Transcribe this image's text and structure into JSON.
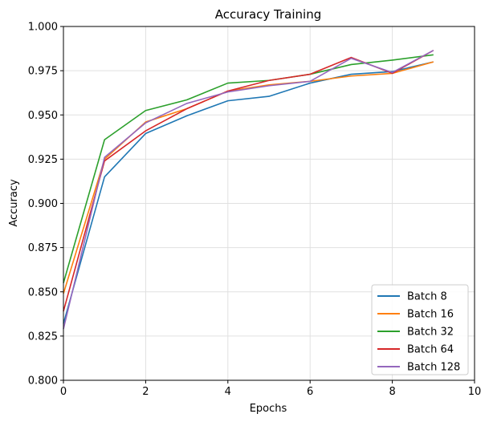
{
  "chart_data": {
    "type": "line",
    "title": "Accuracy Training",
    "xlabel": "Epochs",
    "ylabel": "Accuracy",
    "xlim": [
      0,
      10
    ],
    "ylim": [
      0.8,
      1.0
    ],
    "xticks": [
      0,
      2,
      4,
      6,
      8,
      10
    ],
    "yticks": [
      0.8,
      0.825,
      0.85,
      0.875,
      0.9,
      0.925,
      0.95,
      0.975,
      1.0
    ],
    "xtick_labels": [
      "0",
      "2",
      "4",
      "6",
      "8",
      "10"
    ],
    "ytick_labels": [
      "0.800",
      "0.825",
      "0.850",
      "0.875",
      "0.900",
      "0.925",
      "0.950",
      "0.975",
      "1.000"
    ],
    "grid": true,
    "legend_position": "lower-right",
    "x": [
      0,
      1,
      2,
      3,
      4,
      5,
      6,
      7,
      8,
      9
    ],
    "series": [
      {
        "name": "Batch 8",
        "color": "#1f77b4",
        "values": [
          0.832,
          0.915,
          0.9395,
          0.9495,
          0.958,
          0.9605,
          0.968,
          0.973,
          0.9745,
          0.98
        ]
      },
      {
        "name": "Batch 16",
        "color": "#ff7f0e",
        "values": [
          0.849,
          0.925,
          0.946,
          0.9535,
          0.9635,
          0.967,
          0.969,
          0.972,
          0.9735,
          0.98
        ]
      },
      {
        "name": "Batch 32",
        "color": "#2ca02c",
        "values": [
          0.855,
          0.936,
          0.9525,
          0.9585,
          0.968,
          0.9695,
          0.973,
          0.9785,
          0.981,
          0.984
        ]
      },
      {
        "name": "Batch 64",
        "color": "#d62728",
        "values": [
          0.839,
          0.924,
          0.941,
          0.9535,
          0.9635,
          0.9695,
          0.973,
          0.9825,
          0.9735,
          0.9865
        ]
      },
      {
        "name": "Batch 128",
        "color": "#9467bd",
        "values": [
          0.829,
          0.926,
          0.9455,
          0.9565,
          0.963,
          0.9665,
          0.969,
          0.982,
          0.974,
          0.9865
        ]
      }
    ]
  }
}
